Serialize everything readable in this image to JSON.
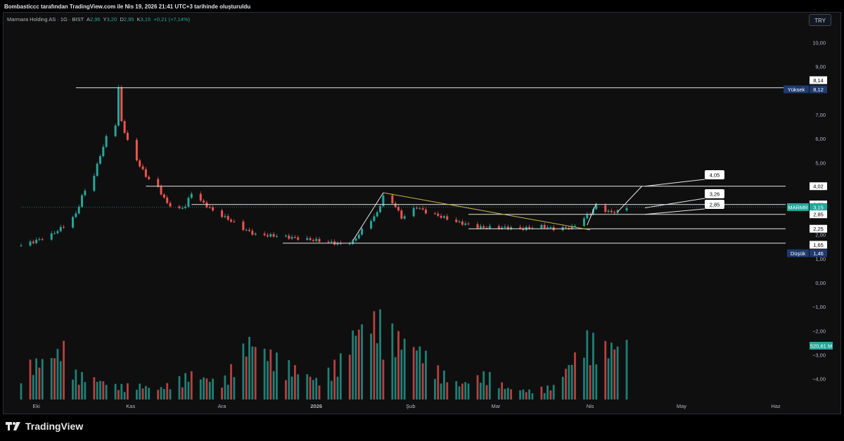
{
  "caption": "Bombasticcc tarafından TradingView.com ile Nis 19, 2026 21:41 UTC+3 tarihinde oluşturuldu",
  "legend": {
    "symbol": "Marmara Holding AS · 1G · BIST",
    "open_key": "A",
    "open": "2,96",
    "high_key": "Y",
    "high": "3,20",
    "low_key": "D",
    "low": "2,95",
    "close_key": "K",
    "close": "3,15",
    "change": "+0,21 (+7,14%)"
  },
  "currency_button": "TRY",
  "brand": "TradingView",
  "colors": {
    "up": "#26a69a",
    "down": "#ef5350",
    "background": "#000000",
    "price_label_bg": "#26a69a",
    "extreme_label_bg": "#1e3a6e",
    "trendline": "#c8b44a"
  },
  "chart_data": {
    "type": "candlestick",
    "symbol": "MARMR",
    "y_ticks": [
      "10,00",
      "9,00",
      "8,00",
      "7,00",
      "6,00",
      "5,00",
      "4,00",
      "3,00",
      "2,00",
      "1,00",
      "0,00",
      "−1,00",
      "−2,00",
      "−3,00",
      "−4,00"
    ],
    "x_ticks": [
      "Eki",
      "Kas",
      "Ara",
      "2026",
      "Şub",
      "Mar",
      "Nis",
      "May",
      "Haz"
    ],
    "ylim": [
      -4.8,
      10.6
    ],
    "x_range": [
      "2025-09-26",
      "2026-06-10"
    ],
    "price_series": [
      {
        "date": "2025-09-26",
        "close": 1.55
      },
      {
        "date": "2025-10-01",
        "close": 1.75
      },
      {
        "date": "2025-10-06",
        "close": 2.0
      },
      {
        "date": "2025-10-10",
        "close": 2.35
      },
      {
        "date": "2025-10-14",
        "close": 2.85
      },
      {
        "date": "2025-10-16",
        "close": 3.6
      },
      {
        "date": "2025-10-20",
        "close": 4.5
      },
      {
        "date": "2025-10-22",
        "close": 5.3
      },
      {
        "date": "2025-10-24",
        "close": 6.05
      },
      {
        "date": "2025-10-27",
        "close": 6.6
      },
      {
        "date": "2025-10-28",
        "close": 8.12
      },
      {
        "date": "2025-10-29",
        "close": 6.7
      },
      {
        "date": "2025-10-31",
        "close": 5.9
      },
      {
        "date": "2025-11-03",
        "close": 5.1
      },
      {
        "date": "2025-11-06",
        "close": 4.45
      },
      {
        "date": "2025-11-10",
        "close": 3.95
      },
      {
        "date": "2025-11-13",
        "close": 3.3
      },
      {
        "date": "2025-11-17",
        "close": 3.05
      },
      {
        "date": "2025-11-19",
        "close": 3.2
      },
      {
        "date": "2025-11-21",
        "close": 3.75
      },
      {
        "date": "2025-11-25",
        "close": 3.3
      },
      {
        "date": "2025-11-28",
        "close": 3.0
      },
      {
        "date": "2025-12-03",
        "close": 2.65
      },
      {
        "date": "2025-12-08",
        "close": 2.25
      },
      {
        "date": "2025-12-12",
        "close": 2.0
      },
      {
        "date": "2025-12-19",
        "close": 1.95
      },
      {
        "date": "2025-12-26",
        "close": 1.85
      },
      {
        "date": "2026-01-02",
        "close": 1.75
      },
      {
        "date": "2026-01-07",
        "close": 1.65
      },
      {
        "date": "2026-01-09",
        "close": 1.6
      },
      {
        "date": "2026-01-13",
        "close": 1.7
      },
      {
        "date": "2026-01-16",
        "close": 2.2
      },
      {
        "date": "2026-01-21",
        "close": 2.9
      },
      {
        "date": "2026-01-23",
        "close": 3.6
      },
      {
        "date": "2026-01-27",
        "close": 3.2
      },
      {
        "date": "2026-01-29",
        "close": 2.7
      },
      {
        "date": "2026-02-03",
        "close": 3.15
      },
      {
        "date": "2026-02-06",
        "close": 2.95
      },
      {
        "date": "2026-02-11",
        "close": 2.75
      },
      {
        "date": "2026-02-17",
        "close": 2.5
      },
      {
        "date": "2026-02-24",
        "close": 2.3
      },
      {
        "date": "2026-03-03",
        "close": 2.3
      },
      {
        "date": "2026-03-10",
        "close": 2.25
      },
      {
        "date": "2026-03-16",
        "close": 2.35
      },
      {
        "date": "2026-03-20",
        "close": 2.25
      },
      {
        "date": "2026-03-26",
        "close": 2.3
      },
      {
        "date": "2026-04-01",
        "close": 2.9
      },
      {
        "date": "2026-04-03",
        "close": 3.2
      },
      {
        "date": "2026-04-07",
        "close": 2.95
      },
      {
        "date": "2026-04-10",
        "close": 2.95
      },
      {
        "date": "2026-04-13",
        "close": 3.15
      }
    ],
    "volume_series": [
      {
        "date": "2025-09-26",
        "value": 42
      },
      {
        "date": "2025-10-06",
        "value": 58
      },
      {
        "date": "2025-10-10",
        "value": 70
      },
      {
        "date": "2025-10-14",
        "value": 35
      },
      {
        "date": "2025-10-20",
        "value": 28
      },
      {
        "date": "2025-10-28",
        "value": 18
      },
      {
        "date": "2025-11-03",
        "value": 20
      },
      {
        "date": "2025-11-10",
        "value": 14
      },
      {
        "date": "2025-11-21",
        "value": 35
      },
      {
        "date": "2025-12-01",
        "value": 22
      },
      {
        "date": "2025-12-10",
        "value": 80
      },
      {
        "date": "2025-12-19",
        "value": 55
      },
      {
        "date": "2026-01-02",
        "value": 25
      },
      {
        "date": "2026-01-09",
        "value": 55
      },
      {
        "date": "2026-01-14",
        "value": 95
      },
      {
        "date": "2026-01-21",
        "value": 110
      },
      {
        "date": "2026-01-27",
        "value": 85
      },
      {
        "date": "2026-02-03",
        "value": 72
      },
      {
        "date": "2026-02-10",
        "value": 40
      },
      {
        "date": "2026-02-17",
        "value": 20
      },
      {
        "date": "2026-02-26",
        "value": 35
      },
      {
        "date": "2026-03-05",
        "value": 15
      },
      {
        "date": "2026-03-12",
        "value": 12
      },
      {
        "date": "2026-03-20",
        "value": 18
      },
      {
        "date": "2026-03-31",
        "value": 82
      },
      {
        "date": "2026-04-06",
        "value": 70
      },
      {
        "date": "2026-04-13",
        "value": 78
      }
    ],
    "horizontal_lines": [
      {
        "value": 8.12,
        "start": "2025-10-14"
      },
      {
        "value": 4.02,
        "start": "2025-11-06"
      },
      {
        "value": 3.26,
        "start": "2025-11-21"
      },
      {
        "value": 2.85,
        "start": "2026-02-20"
      },
      {
        "value": 2.25,
        "start": "2026-02-20"
      },
      {
        "value": 1.65,
        "start": "2025-12-21"
      }
    ],
    "trendline": {
      "from": {
        "date": "2026-01-23",
        "value": 3.75
      },
      "to": {
        "date": "2026-04-01",
        "value": 2.2
      }
    },
    "projections": [
      {
        "from": {
          "date": "2026-01-13",
          "value": 1.75
        },
        "to": {
          "date": "2026-01-23",
          "value": 3.75
        }
      },
      {
        "from": {
          "date": "2026-03-31",
          "value": 2.4
        },
        "to": {
          "date": "2026-04-03",
          "value": 3.3
        }
      },
      {
        "from": {
          "date": "2026-04-10",
          "value": 2.95
        },
        "to": {
          "date": "2026-04-18",
          "value": 4.02
        }
      }
    ],
    "callouts": [
      {
        "text": "4,05",
        "from": {
          "date": "2026-04-19",
          "value": 4.02
        }
      },
      {
        "text": "3,26",
        "from": {
          "date": "2026-04-19",
          "value": 3.12
        }
      },
      {
        "text": "2,85",
        "from": {
          "date": "2026-04-19",
          "value": 2.85
        }
      }
    ],
    "price_labels": [
      {
        "text": "8,14",
        "value": 8.14,
        "style": "plain"
      },
      {
        "text": "8,12",
        "value": 8.12,
        "style": "extreme",
        "tag": "Yüksek"
      },
      {
        "text": "4,02",
        "value": 4.02,
        "style": "plain"
      },
      {
        "text": "3,26",
        "value": 3.26,
        "style": "plain"
      },
      {
        "text": "3,15",
        "value": 3.15,
        "style": "last",
        "tag": "MARMR"
      },
      {
        "text": "2,85",
        "value": 2.85,
        "style": "plain"
      },
      {
        "text": "2,25",
        "value": 2.25,
        "style": "plain"
      },
      {
        "text": "1,65",
        "value": 1.65,
        "style": "plain"
      },
      {
        "text": "1,46",
        "value": 1.46,
        "style": "extreme",
        "tag": "Düşük"
      }
    ],
    "volume_label": "520,61 M"
  }
}
